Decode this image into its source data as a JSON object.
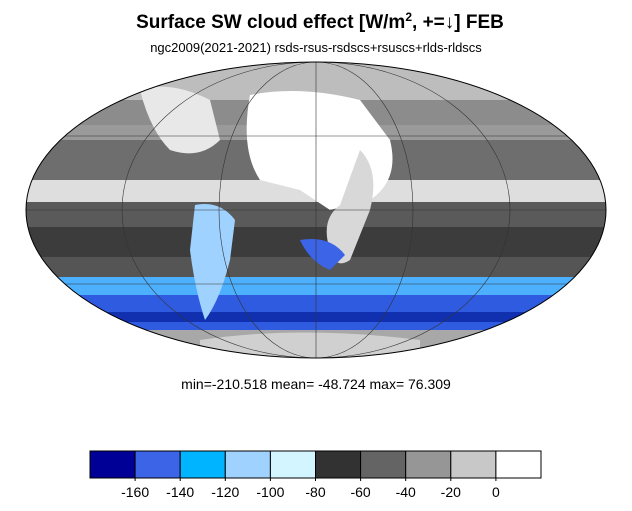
{
  "header": {
    "title_start": "Surface SW cloud effect [W/m",
    "title_sup": "2",
    "title_end": ", +=↓]  FEB",
    "subtitle": "ngc2009(2021-2021)  rsds-rsus-rsdscs+rsuscs+rlds-rldscs"
  },
  "stats": "min=-210.518   mean= -48.724  max=  76.309",
  "colorbar": {
    "colors": [
      "#000096",
      "#3c64e6",
      "#00b4ff",
      "#a0d2ff",
      "#d2f5ff",
      "#323232",
      "#646464",
      "#969696",
      "#c8c8c8",
      "#ffffff"
    ],
    "ticks": [
      -160,
      -140,
      -120,
      -100,
      -80,
      -60,
      -40,
      -20,
      0
    ],
    "lim": [
      -180,
      20
    ]
  }
}
